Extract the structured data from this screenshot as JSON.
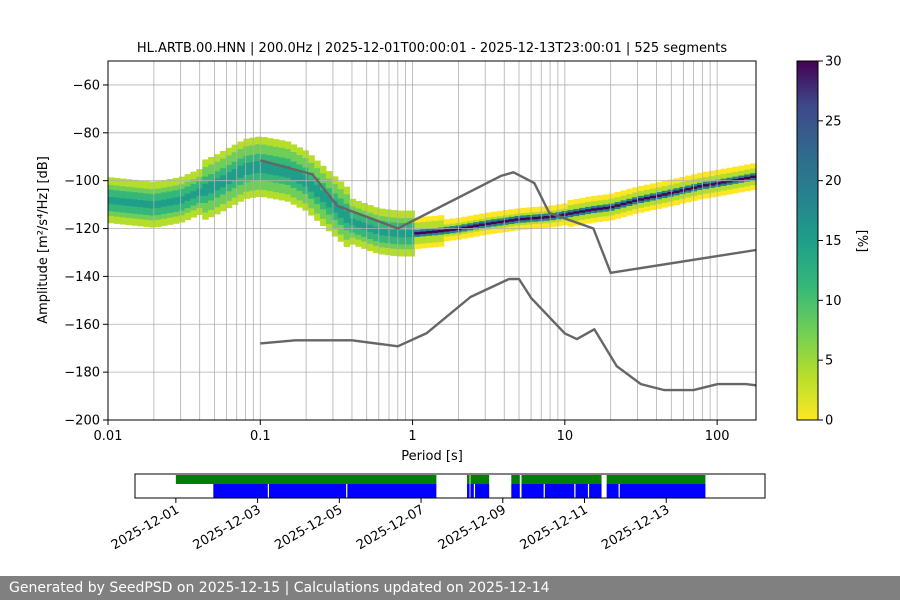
{
  "chart_data": [
    {
      "type": "heatmap",
      "title": "HL.ARTB.00.HNN | 200.0Hz | 2025-12-01T00:00:01 - 2025-12-13T23:00:01 | 525 segments",
      "xlabel": "Period [s]",
      "ylabel": "Amplitude [m²/s⁴/Hz] [dB]",
      "xscale": "log",
      "xlim": [
        0.01,
        180
      ],
      "ylim": [
        -200,
        -50
      ],
      "xticks": [
        "0.01",
        "0.1",
        "1",
        "10",
        "100"
      ],
      "yticks": [
        "−60",
        "−80",
        "−100",
        "−120",
        "−140",
        "−160",
        "−180",
        "−200"
      ],
      "grid": true,
      "colorbar": {
        "label": "[%]",
        "range": [
          0,
          30
        ],
        "ticks": [
          "0",
          "5",
          "10",
          "15",
          "20",
          "25",
          "30"
        ],
        "colormap": "viridis_r"
      },
      "mode_curve": {
        "period": [
          0.01,
          0.02,
          0.03,
          0.05,
          0.08,
          0.1,
          0.15,
          0.2,
          0.3,
          0.4,
          0.6,
          0.8,
          1,
          1.5,
          2,
          3,
          5,
          8,
          10,
          15,
          20,
          30,
          50,
          80,
          100,
          150,
          180
        ],
        "db": [
          -108,
          -110,
          -108,
          -102,
          -95,
          -94,
          -96,
          -100,
          -110,
          -117,
          -121,
          -122,
          -122,
          -121,
          -120,
          -118,
          -116,
          -115,
          -114,
          -112,
          -111,
          -108,
          -105,
          -102,
          -101,
          -99,
          -98
        ]
      },
      "high_noise_model": {
        "period": [
          0.1,
          0.22,
          0.32,
          0.8,
          3.8,
          4.6,
          6.3,
          7.9,
          15.4,
          20,
          354.8
        ],
        "db": [
          -91.5,
          -97.4,
          -110.5,
          -120,
          -98,
          -96.5,
          -101,
          -113.5,
          -120,
          -138.5,
          -126
        ]
      },
      "low_noise_model": {
        "period": [
          0.1,
          0.17,
          0.4,
          0.8,
          1.24,
          2.4,
          4.3,
          5,
          6,
          10,
          12,
          15.6,
          21.9,
          31.6,
          45,
          70,
          101,
          154,
          328,
          600
        ],
        "db": [
          -168,
          -166.7,
          -166.7,
          -169.2,
          -163.7,
          -148.6,
          -141.1,
          -141.1,
          -149,
          -163.8,
          -166.2,
          -162.1,
          -177.5,
          -185,
          -187.5,
          -187.5,
          -185,
          -185,
          -187.5,
          -184.4
        ]
      }
    },
    {
      "type": "timeline",
      "xticks": [
        "2025-12-01",
        "2025-12-03",
        "2025-12-05",
        "2025-12-07",
        "2025-12-09",
        "2025-12-11",
        "2025-12-13"
      ],
      "xlim": [
        "2025-11-30T00:00",
        "2025-12-15T10:00"
      ],
      "data_coverage_color": "#008000",
      "psd_coverage_color": "#0000ff",
      "data_coverage": [
        [
          "2025-12-01T00:00",
          "2025-12-07T09:00"
        ],
        [
          "2025-12-08T03:00",
          "2025-12-08T04:30"
        ],
        [
          "2025-12-08T05:00",
          "2025-12-08T16:00"
        ],
        [
          "2025-12-09T05:00",
          "2025-12-09T10:00"
        ],
        [
          "2025-12-09T11:00",
          "2025-12-11T10:00"
        ],
        [
          "2025-12-11T13:00",
          "2025-12-13T23:00"
        ]
      ],
      "psd_coverage": [
        [
          "2025-12-01T22:00",
          "2025-12-07T09:00"
        ],
        [
          "2025-12-08T03:00",
          "2025-12-08T04:30"
        ],
        [
          "2025-12-08T05:00",
          "2025-12-08T16:00"
        ],
        [
          "2025-12-09T05:00",
          "2025-12-09T10:00"
        ],
        [
          "2025-12-09T11:00",
          "2025-12-11T10:00"
        ],
        [
          "2025-12-11T13:00",
          "2025-12-13T23:00"
        ]
      ],
      "psd_gaps": [
        "2025-12-03T06:00",
        "2025-12-05T04:00",
        "2025-12-08T07:00",
        "2025-12-10T00:00",
        "2025-12-10T18:00",
        "2025-12-11T02:00",
        "2025-12-11T20:00"
      ]
    }
  ],
  "footer": {
    "text": "Generated by SeedPSD on 2025-12-15 | Calculations updated on 2025-12-14"
  }
}
